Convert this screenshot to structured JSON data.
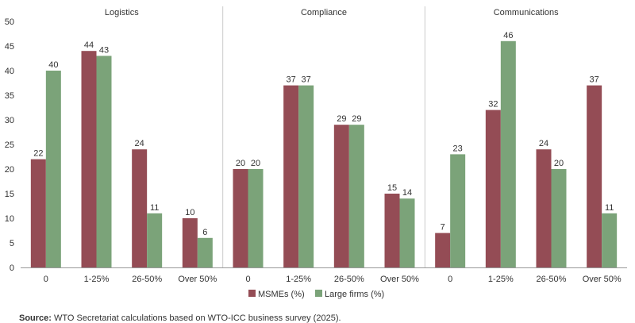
{
  "chart_data": {
    "type": "bar",
    "ylim": [
      0,
      50
    ],
    "yticks": [
      0,
      5,
      10,
      15,
      20,
      25,
      30,
      35,
      40,
      45,
      50
    ],
    "grid": false,
    "legend_position": "bottom-center",
    "categories": [
      "0",
      "1-25%",
      "26-50%",
      "Over 50%"
    ],
    "series_names": [
      "MSMEs (%)",
      "Large firms (%)"
    ],
    "colors": {
      "msme": "#944c55",
      "large": "#7ba379",
      "axis": "#999999",
      "divider": "#cccccc"
    },
    "panels": [
      {
        "title": "Logistics",
        "series": [
          {
            "name": "MSMEs (%)",
            "values": [
              22,
              44,
              24,
              10
            ]
          },
          {
            "name": "Large firms (%)",
            "values": [
              40,
              43,
              11,
              6
            ]
          }
        ]
      },
      {
        "title": "Compliance",
        "series": [
          {
            "name": "MSMEs (%)",
            "values": [
              20,
              37,
              29,
              15
            ]
          },
          {
            "name": "Large firms (%)",
            "values": [
              20,
              37,
              29,
              14
            ]
          }
        ]
      },
      {
        "title": "Communications",
        "series": [
          {
            "name": "MSMEs (%)",
            "values": [
              7,
              32,
              24,
              37
            ]
          },
          {
            "name": "Large firms (%)",
            "values": [
              23,
              46,
              20,
              11
            ]
          }
        ]
      }
    ]
  },
  "source": {
    "label": "Source:",
    "text": " WTO Secretariat calculations based on WTO-ICC business survey (2025)."
  }
}
